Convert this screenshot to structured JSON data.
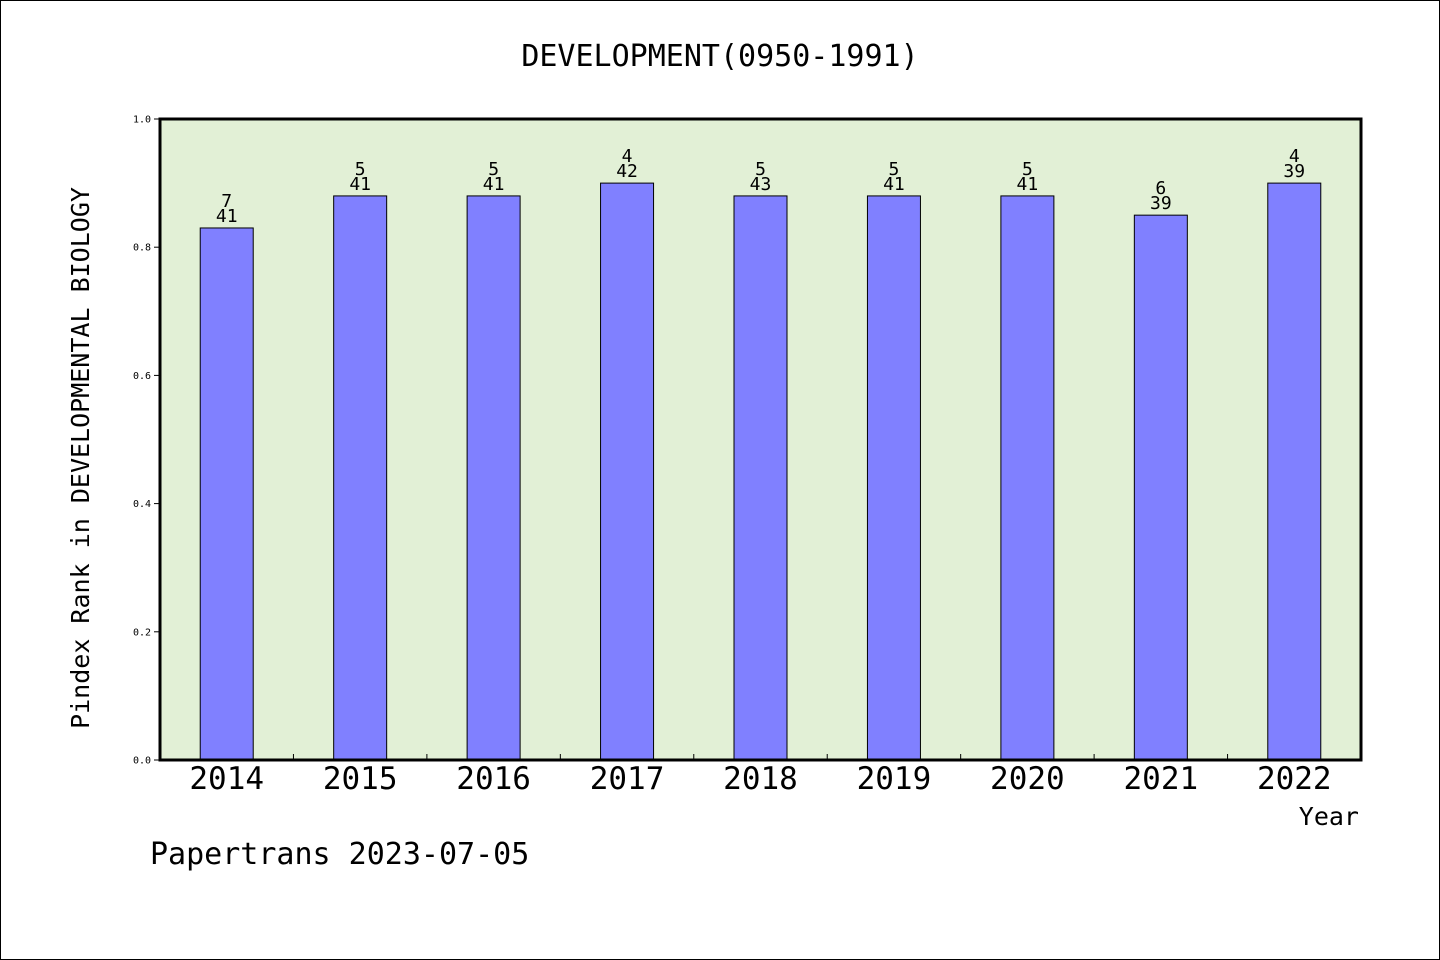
{
  "chart_data": {
    "type": "bar",
    "title": "DEVELOPMENT(0950-1991)",
    "xlabel": "Year",
    "ylabel": "Pindex Rank in DEVELOPMENTAL BIOLOGY",
    "categories": [
      "2014",
      "2015",
      "2016",
      "2017",
      "2018",
      "2019",
      "2020",
      "2021",
      "2022"
    ],
    "values": [
      0.83,
      0.88,
      0.88,
      0.9,
      0.88,
      0.88,
      0.88,
      0.85,
      0.9
    ],
    "rank_labels": [
      "7",
      "5",
      "5",
      "4",
      "5",
      "5",
      "5",
      "6",
      "4"
    ],
    "count_labels": [
      "41",
      "41",
      "41",
      "42",
      "43",
      "41",
      "41",
      "39",
      "39"
    ],
    "ylim": [
      0,
      1.0
    ],
    "yticks": [
      "0.0",
      "0.2",
      "0.4",
      "0.6",
      "0.8",
      "1.0"
    ],
    "grid": false,
    "colors": {
      "bar": "#8080ff",
      "plot_background": "#e2f0d6",
      "axis": "#000000"
    }
  },
  "footer": {
    "credit": "Papertrans 2023-07-05"
  }
}
